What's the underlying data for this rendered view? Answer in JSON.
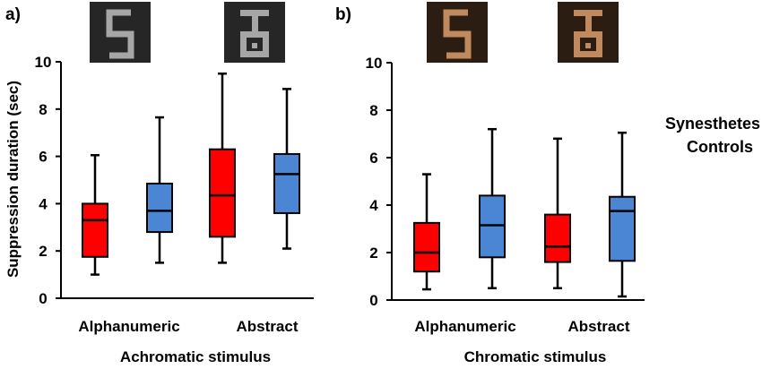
{
  "colors": {
    "synesthetes": "#ff0000",
    "controls": "#4a86d4",
    "stim_bg_dark": "#262626",
    "stim_bg_brown": "#2b1d12"
  },
  "legend": [
    {
      "name": "Synesthetes",
      "color": "#ff0000"
    },
    {
      "name": "Controls",
      "color": "#4a86d4"
    }
  ],
  "ylabel": "Suppression duration (sec)",
  "stimuli": [
    {
      "panel": 0,
      "glyph": "5",
      "color": "#a6a6a6",
      "bg": "#262626"
    },
    {
      "panel": 0,
      "glyph": "abstract",
      "color": "#a6a6a6",
      "bg": "#262626"
    },
    {
      "panel": 1,
      "glyph": "5",
      "color": "#c08a5e",
      "bg": "#2b1d12"
    },
    {
      "panel": 1,
      "glyph": "abstract",
      "color": "#c08a5e",
      "bg": "#2b1d12"
    }
  ],
  "chart_data": [
    {
      "type": "box",
      "panel_label": "a)",
      "xlabel": "Achromatic stimulus",
      "ylabel": "Suppression duration (sec)",
      "ylim": [
        0,
        10
      ],
      "yticks": [
        "0",
        "2",
        "4",
        "6",
        "8",
        "10"
      ],
      "categories": [
        "Alphanumeric",
        "Abstract"
      ],
      "series": [
        {
          "name": "Synesthetes",
          "color": "#ff0000",
          "boxes": [
            {
              "min": 1.0,
              "q1": 1.75,
              "median": 3.3,
              "q3": 4.0,
              "max": 6.05
            },
            {
              "min": 1.5,
              "q1": 2.6,
              "median": 4.35,
              "q3": 6.3,
              "max": 9.5
            }
          ]
        },
        {
          "name": "Controls",
          "color": "#4a86d4",
          "boxes": [
            {
              "min": 1.5,
              "q1": 2.8,
              "median": 3.7,
              "q3": 4.85,
              "max": 7.65
            },
            {
              "min": 2.1,
              "q1": 3.6,
              "median": 5.25,
              "q3": 6.1,
              "max": 8.85
            }
          ]
        }
      ]
    },
    {
      "type": "box",
      "panel_label": "b)",
      "xlabel": "Chromatic stimulus",
      "ylabel": "",
      "ylim": [
        0,
        10
      ],
      "yticks": [
        "0",
        "2",
        "4",
        "6",
        "8",
        "10"
      ],
      "categories": [
        "Alphanumeric",
        "Abstract"
      ],
      "series": [
        {
          "name": "Synesthetes",
          "color": "#ff0000",
          "boxes": [
            {
              "min": 0.45,
              "q1": 1.2,
              "median": 2.0,
              "q3": 3.25,
              "max": 5.3
            },
            {
              "min": 0.5,
              "q1": 1.6,
              "median": 2.25,
              "q3": 3.6,
              "max": 6.8
            }
          ]
        },
        {
          "name": "Controls",
          "color": "#4a86d4",
          "boxes": [
            {
              "min": 0.5,
              "q1": 1.8,
              "median": 3.15,
              "q3": 4.4,
              "max": 7.2
            },
            {
              "min": 0.15,
              "q1": 1.65,
              "median": 3.75,
              "q3": 4.35,
              "max": 7.05
            }
          ]
        }
      ]
    }
  ]
}
